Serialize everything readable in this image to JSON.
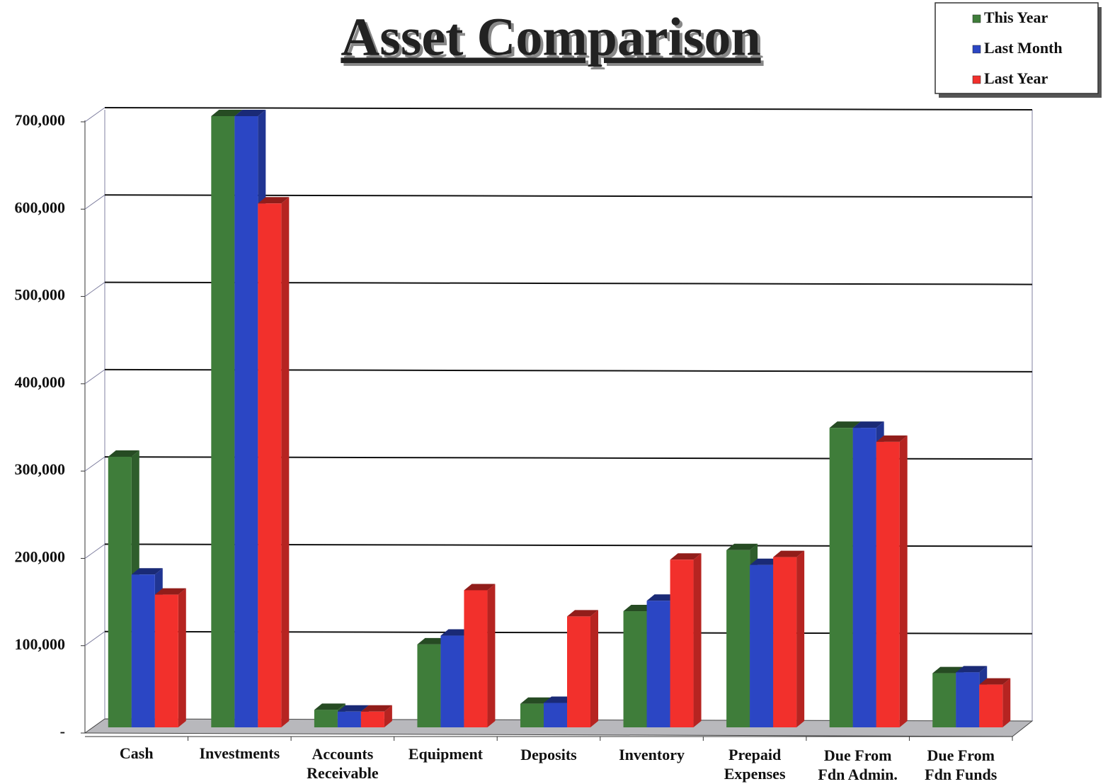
{
  "chart_data": {
    "type": "bar",
    "title": "Asset Comparison",
    "categories": [
      "Cash",
      "Investments",
      "Accounts\nReceivable",
      "Equipment",
      "Deposits",
      "Inventory",
      "Prepaid\nExpenses",
      "Due From\nFdn Admin.",
      "Due From\nFdn Funds"
    ],
    "series": [
      {
        "name": "This Year",
        "color": "#3f7d3a",
        "values": [
          310000,
          700000,
          20000,
          95000,
          27000,
          133000,
          203000,
          343000,
          62000
        ]
      },
      {
        "name": "Last Month",
        "color": "#2b46c4",
        "values": [
          175000,
          700000,
          18000,
          105000,
          28000,
          145000,
          186000,
          343000,
          63000
        ]
      },
      {
        "name": "Last Year",
        "color": "#f2302c",
        "values": [
          152000,
          600000,
          18000,
          157000,
          127000,
          192000,
          195000,
          327000,
          49000
        ]
      }
    ],
    "ylim": [
      0,
      700000
    ],
    "yticks": [
      {
        "value": 0,
        "label": "-"
      },
      {
        "value": 100000,
        "label": "100,000"
      },
      {
        "value": 200000,
        "label": "200,000"
      },
      {
        "value": 300000,
        "label": "300,000"
      },
      {
        "value": 400000,
        "label": "400,000"
      },
      {
        "value": 500000,
        "label": "500,000"
      },
      {
        "value": 600000,
        "label": "600,000"
      },
      {
        "value": 700000,
        "label": "700,000"
      }
    ],
    "grid": true,
    "legend": "top-right"
  }
}
